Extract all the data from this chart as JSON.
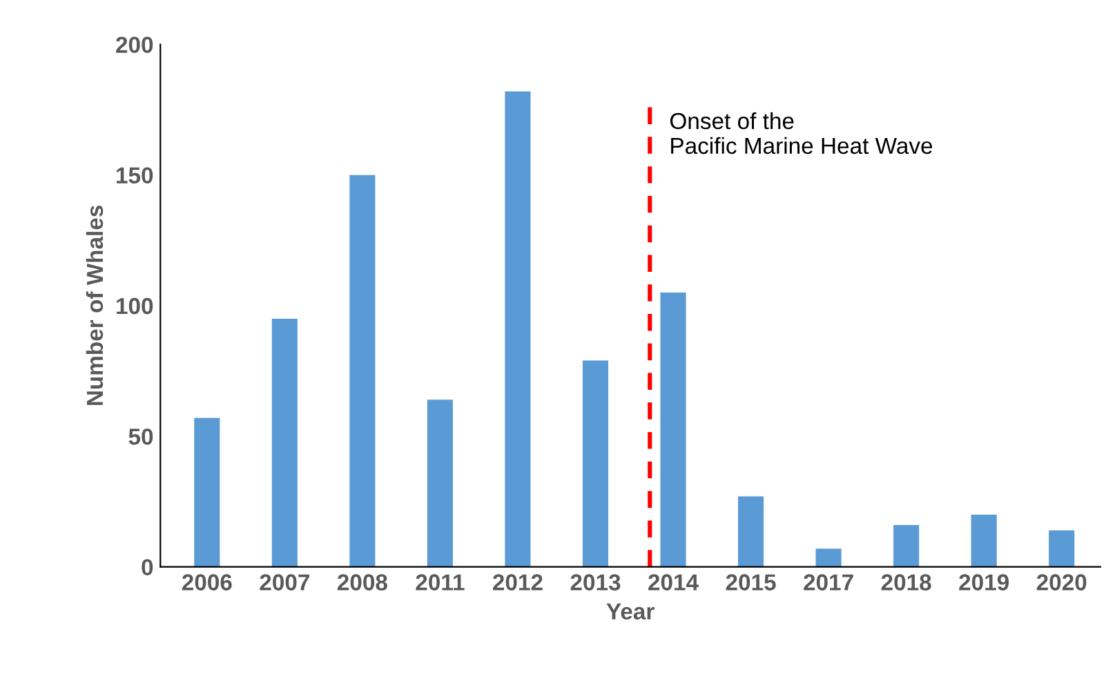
{
  "chart_data": {
    "type": "bar",
    "xlabel": "Year",
    "ylabel": "Number of Whales",
    "categories": [
      "2006",
      "2007",
      "2008",
      "2011",
      "2012",
      "2013",
      "2014",
      "2015",
      "2017",
      "2018",
      "2019",
      "2020"
    ],
    "values": [
      57,
      95,
      150,
      64,
      182,
      79,
      105,
      27,
      7,
      16,
      20,
      14
    ],
    "color": "#5b9bd5",
    "ylim": [
      0,
      200
    ],
    "yticks": [
      0,
      50,
      100,
      150,
      200
    ],
    "grid": false,
    "ref_lines": [
      {
        "axis": "x",
        "value": "2014",
        "label": "Onset of the\nPacific Marine Heat Wave",
        "color": "#ff0000",
        "line_style": "dashed"
      }
    ]
  }
}
